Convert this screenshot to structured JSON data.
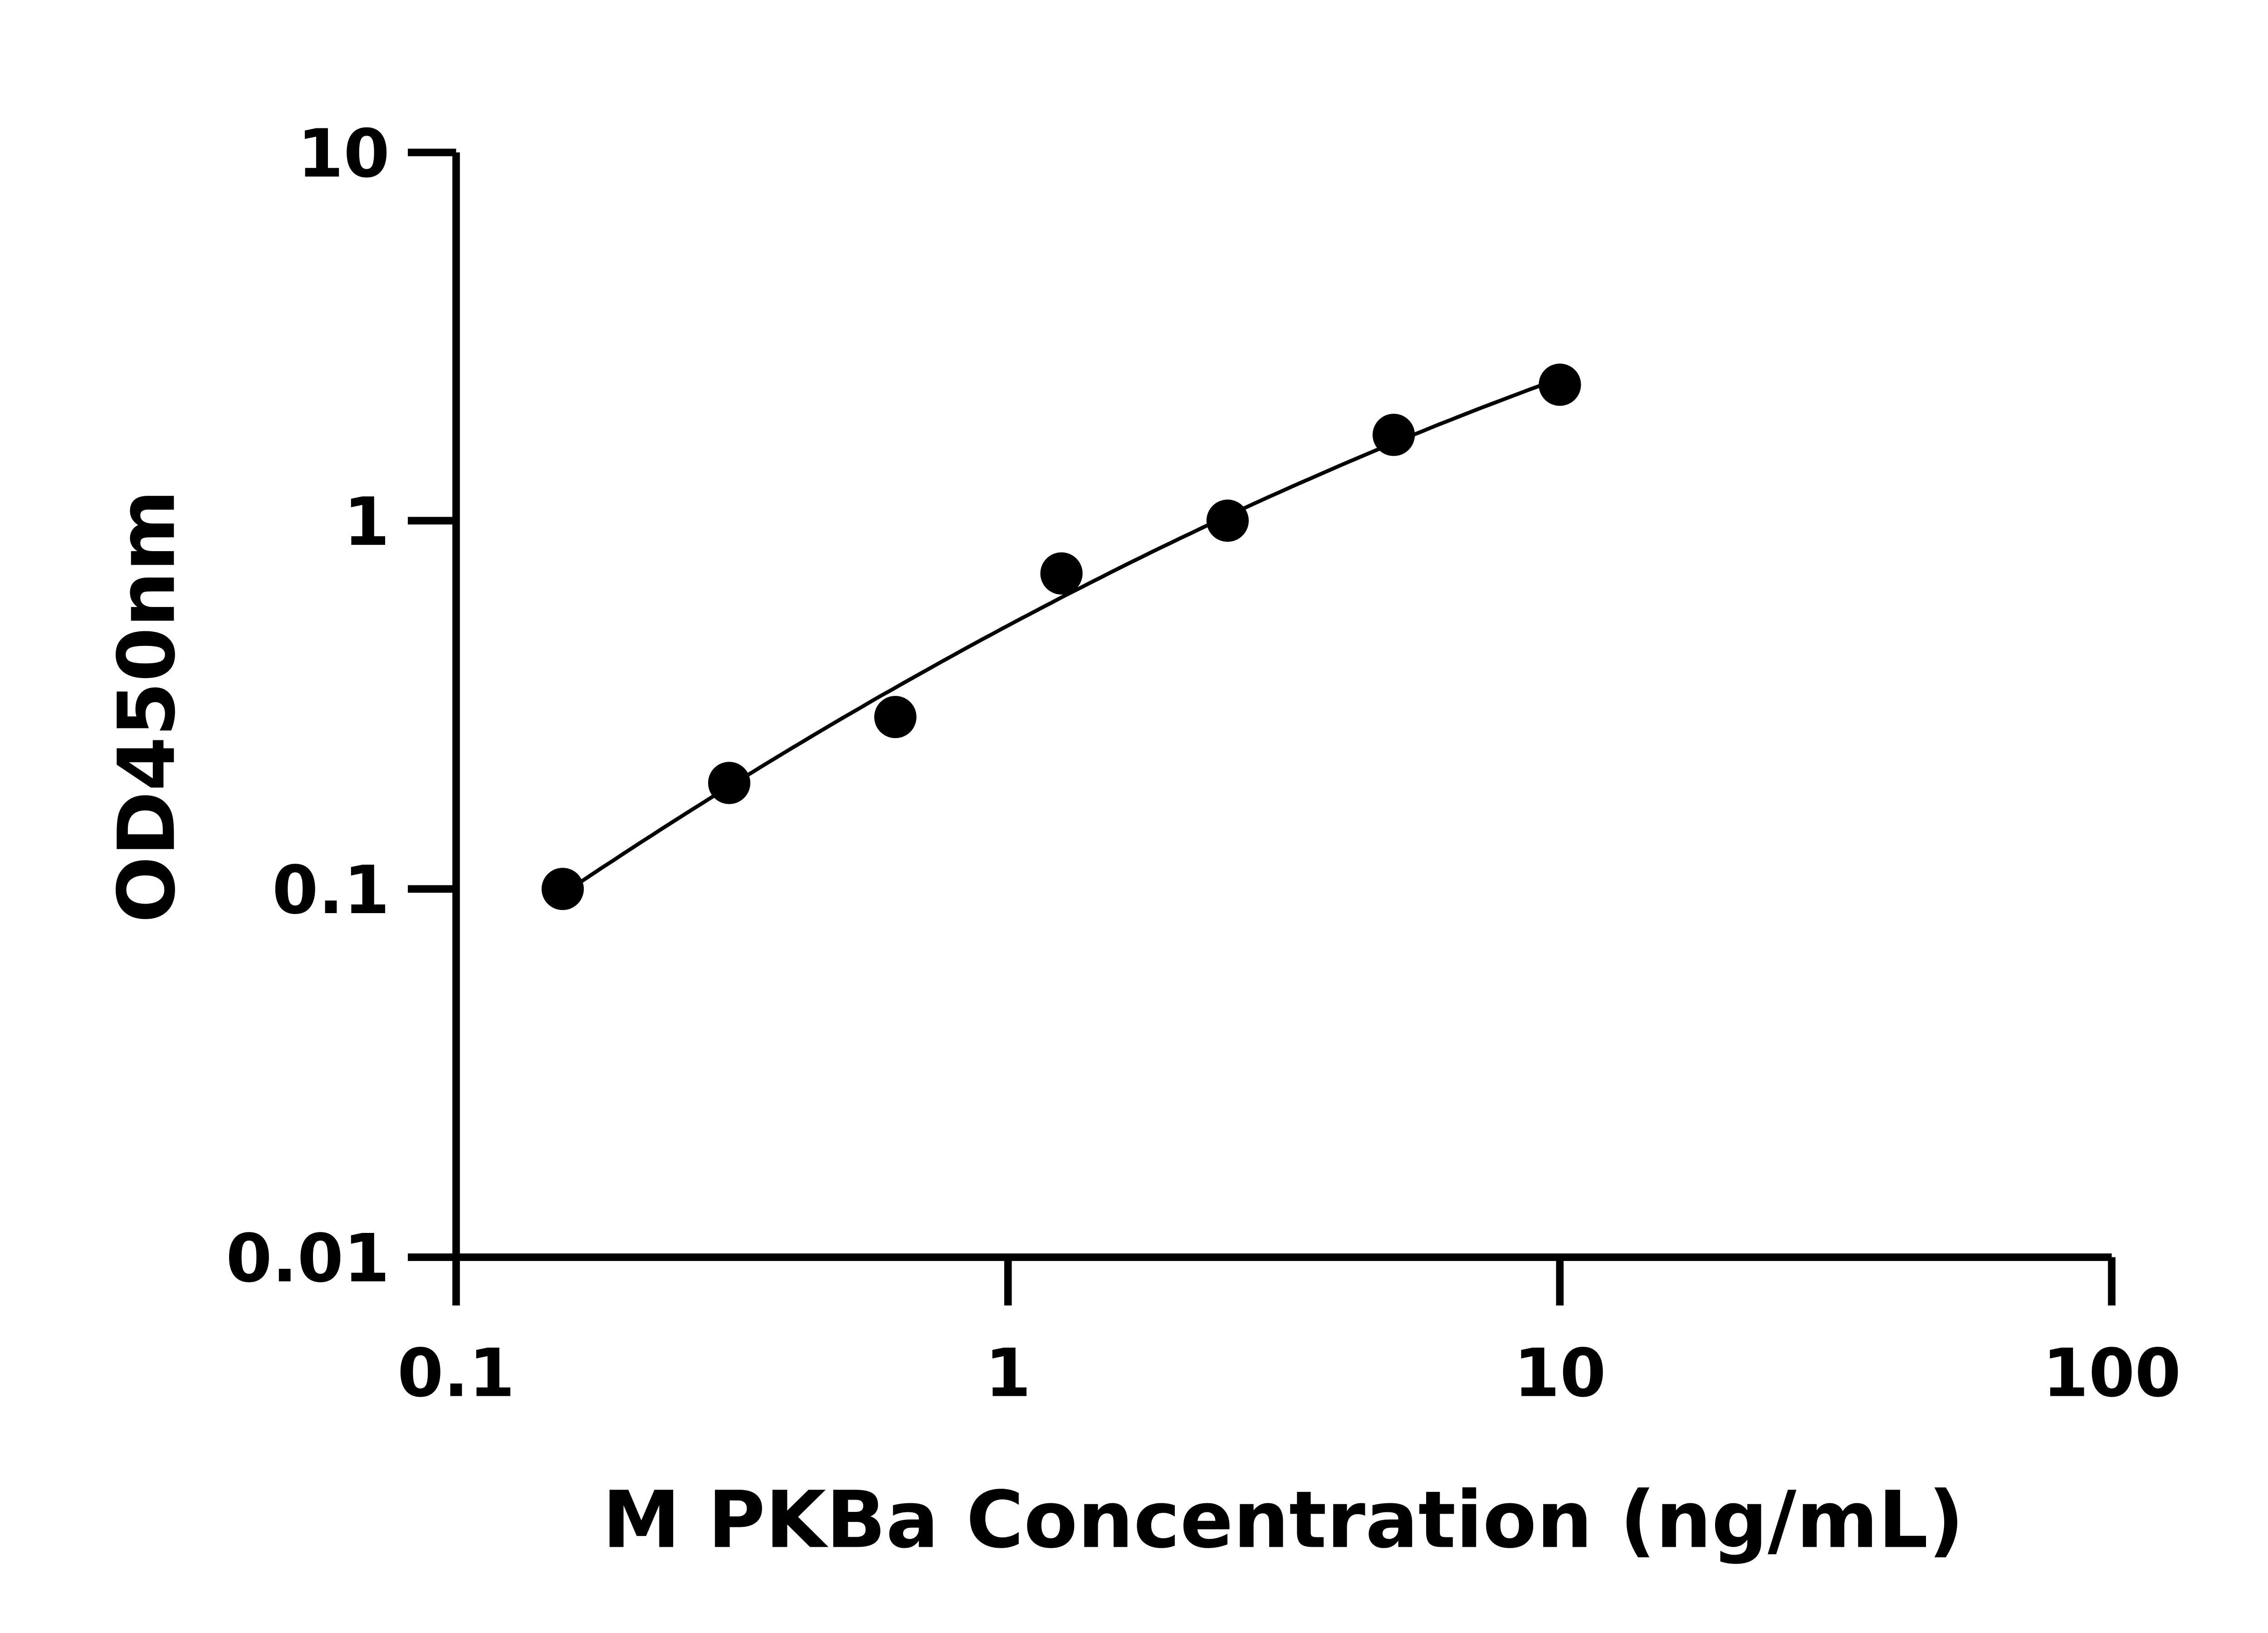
{
  "chart_data": {
    "type": "scatter",
    "xlabel": "M PKBa Concentration (ng/mL)",
    "ylabel": "OD450nm",
    "xscale": "log",
    "yscale": "log",
    "xlim": [
      0.1,
      100
    ],
    "ylim": [
      0.01,
      10
    ],
    "xticks": [
      "0.1",
      "1",
      "10",
      "100"
    ],
    "yticks": [
      "0.01",
      "0.1",
      "1",
      "10"
    ],
    "grid": false,
    "legend": "none",
    "fit_curve": true,
    "color": "#000000",
    "points": [
      {
        "x": 0.156,
        "y": 0.1
      },
      {
        "x": 0.3125,
        "y": 0.194
      },
      {
        "x": 0.625,
        "y": 0.293
      },
      {
        "x": 1.25,
        "y": 0.719
      },
      {
        "x": 2.5,
        "y": 1.0
      },
      {
        "x": 5,
        "y": 1.71
      },
      {
        "x": 10,
        "y": 2.34
      }
    ]
  }
}
